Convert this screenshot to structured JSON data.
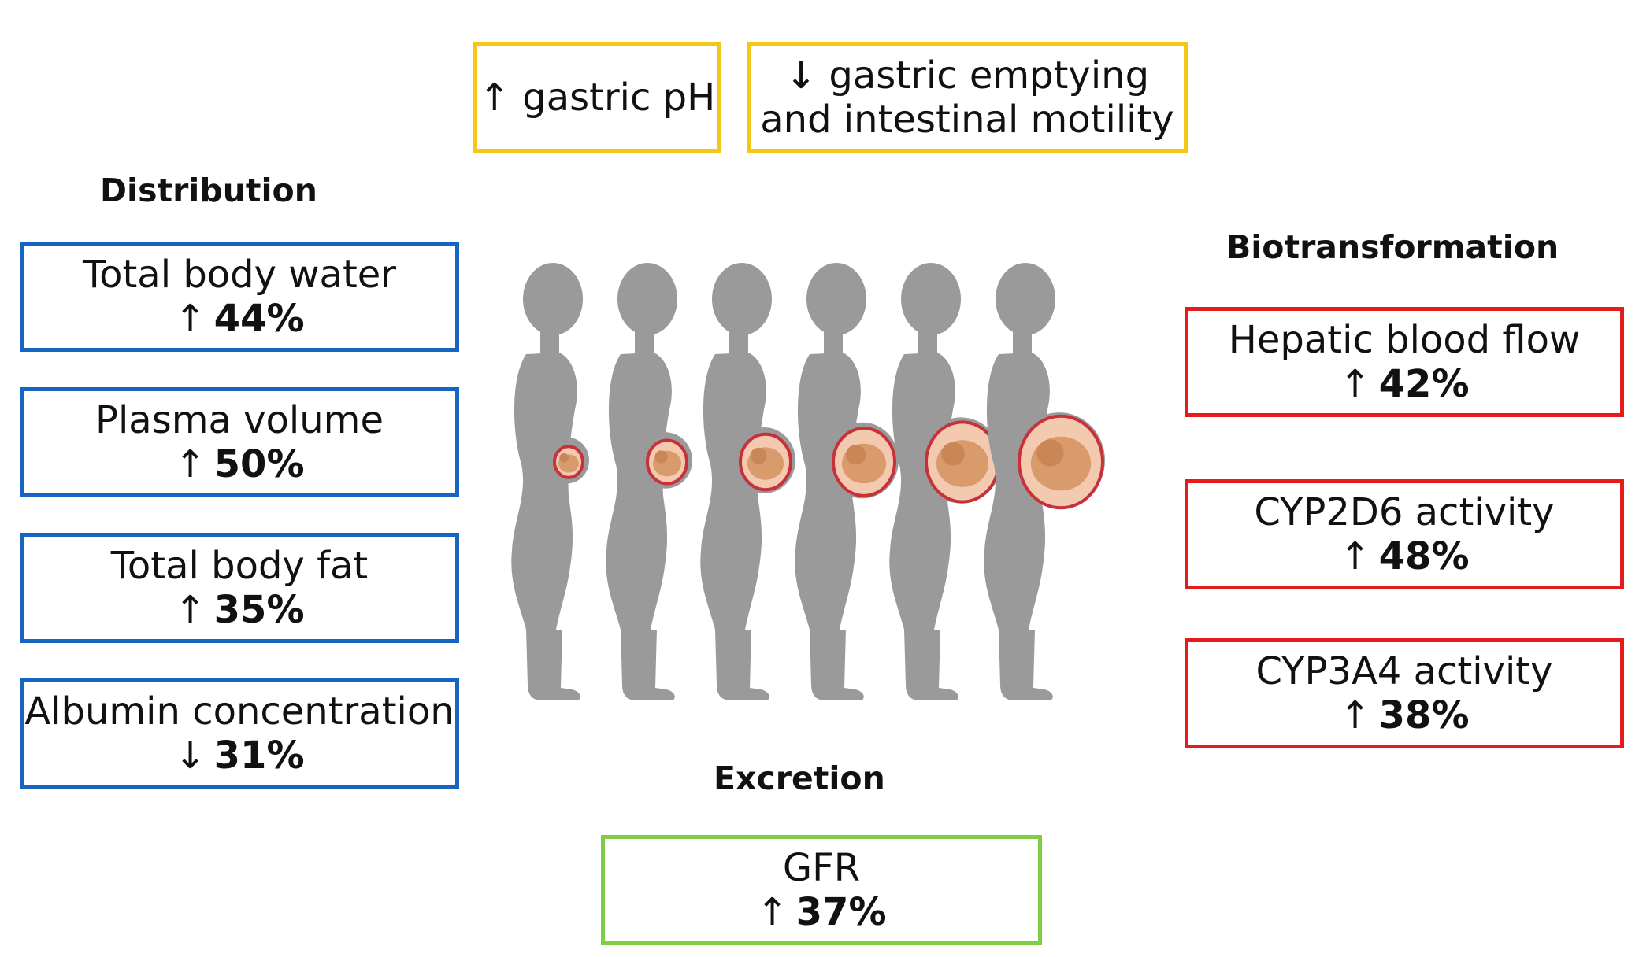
{
  "headings": {
    "distribution": "Distribution",
    "biotransformation": "Biotransformation",
    "excretion": "Excretion"
  },
  "absorption": [
    {
      "arrow": "↑",
      "label": "gastric pH"
    },
    {
      "arrow": "↓",
      "line1": "gastric emptying",
      "line2": "and intestinal motility"
    }
  ],
  "distribution": [
    {
      "label": "Total body water",
      "arrow": "↑",
      "value": "44%"
    },
    {
      "label": "Plasma volume",
      "arrow": "↑",
      "value": "50%"
    },
    {
      "label": "Total body fat",
      "arrow": "↑",
      "value": "35%"
    },
    {
      "label": "Albumin concentration",
      "arrow": "↓",
      "value": "31%"
    }
  ],
  "biotransformation": [
    {
      "label": "Hepatic blood flow",
      "arrow": "↑",
      "value": "42%"
    },
    {
      "label": "CYP2D6 activity",
      "arrow": "↑",
      "value": "48%"
    },
    {
      "label": "CYP3A4 activity",
      "arrow": "↑",
      "value": "38%"
    }
  ],
  "excretion": [
    {
      "label": "GFR",
      "arrow": "↑",
      "value": "37%"
    }
  ],
  "colors": {
    "distribution": "#1565c0",
    "biotransformation": "#e41b1b",
    "absorption": "#f5c518",
    "excretion": "#7fcd45",
    "silhouette": "#9a9a9a",
    "uterus": "#c8303a",
    "fetus": "#d99a6c"
  },
  "stages": 6
}
